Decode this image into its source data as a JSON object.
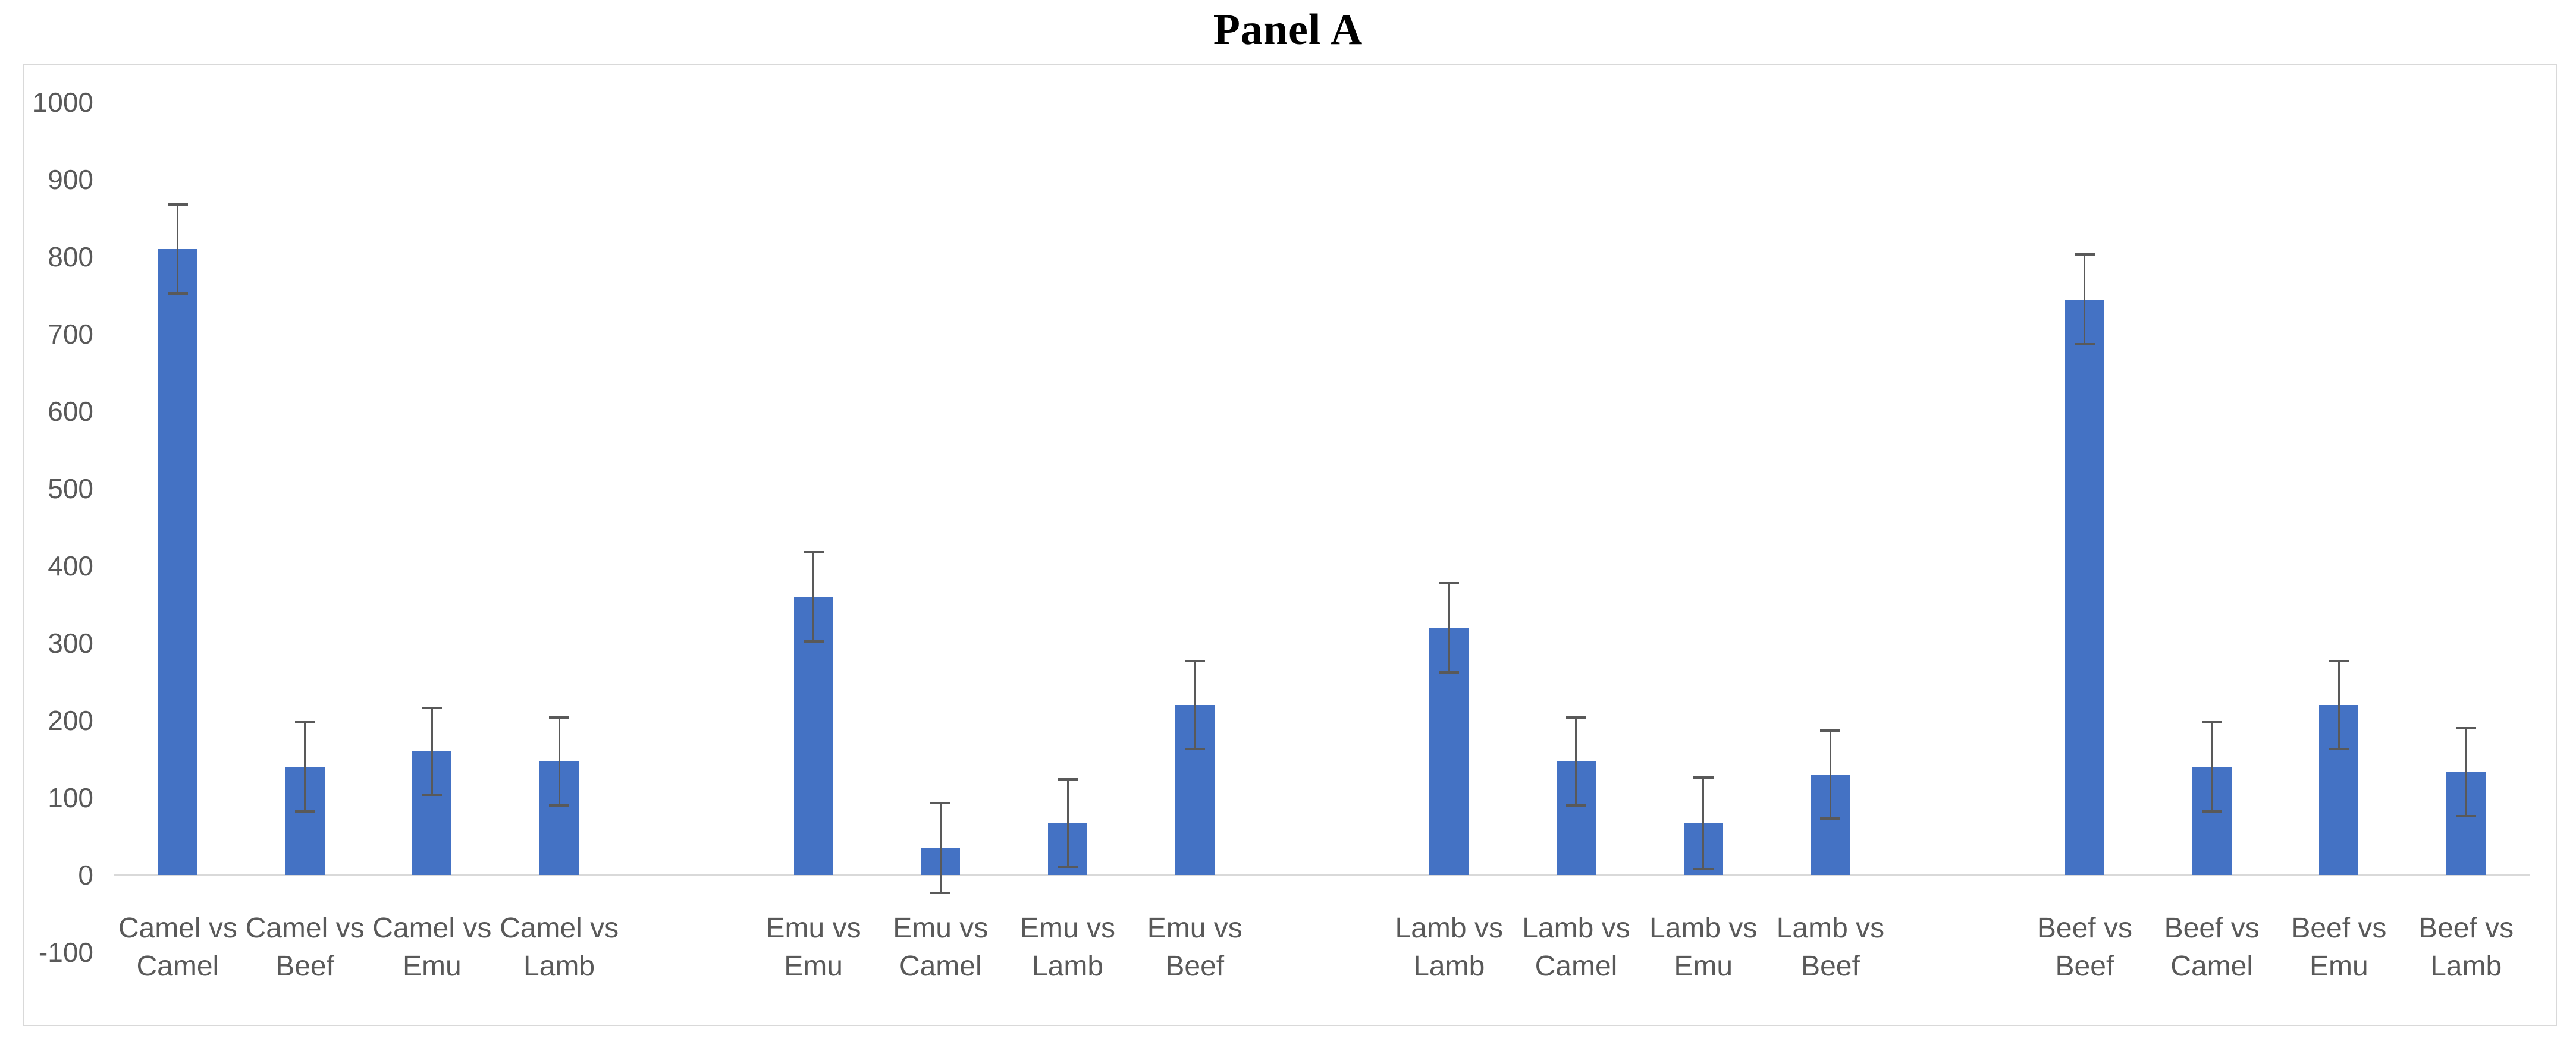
{
  "figure": {
    "title": "Panel A"
  },
  "chart_data": {
    "type": "bar",
    "title": "Panel A",
    "xlabel": "",
    "ylabel": "",
    "legend": false,
    "grid": false,
    "background": "#ffffff",
    "categories": [
      "Camel vs Camel",
      "Camel vs Beef",
      "Camel vs Emu",
      "Camel vs Lamb",
      "Emu vs Emu",
      "Emu vs Camel",
      "Emu vs Lamb",
      "Emu vs Beef",
      "Lamb vs Lamb",
      "Lamb vs Camel",
      "Lamb vs Emu",
      "Lamb vs Beef",
      "Beef vs Beef",
      "Beef vs Camel",
      "Beef vs Emu",
      "Beef vs Lamb"
    ],
    "values": [
      810,
      140,
      160,
      147,
      360,
      35,
      67,
      220,
      320,
      147,
      67,
      130,
      745,
      140,
      220,
      133
    ],
    "errors": [
      58,
      58,
      56,
      57,
      58,
      58,
      57,
      57,
      58,
      57,
      59,
      57,
      58,
      58,
      57,
      57
    ],
    "group_size": 4,
    "gap_slots_between_groups": 1,
    "y_axis": {
      "min": -100,
      "max": 1000,
      "step": 100,
      "ticks": [
        1000,
        900,
        800,
        700,
        600,
        500,
        400,
        300,
        200,
        100,
        0,
        -100
      ]
    },
    "ylim": [
      -100,
      1000
    ],
    "colors": {
      "bar": "#4472C4",
      "error_bar": "#595959",
      "axis_line": "#d9d9d9",
      "tick_label": "#595959",
      "category_label": "#595959",
      "frame_border": "#d9d9d9",
      "title": "#000000"
    }
  }
}
